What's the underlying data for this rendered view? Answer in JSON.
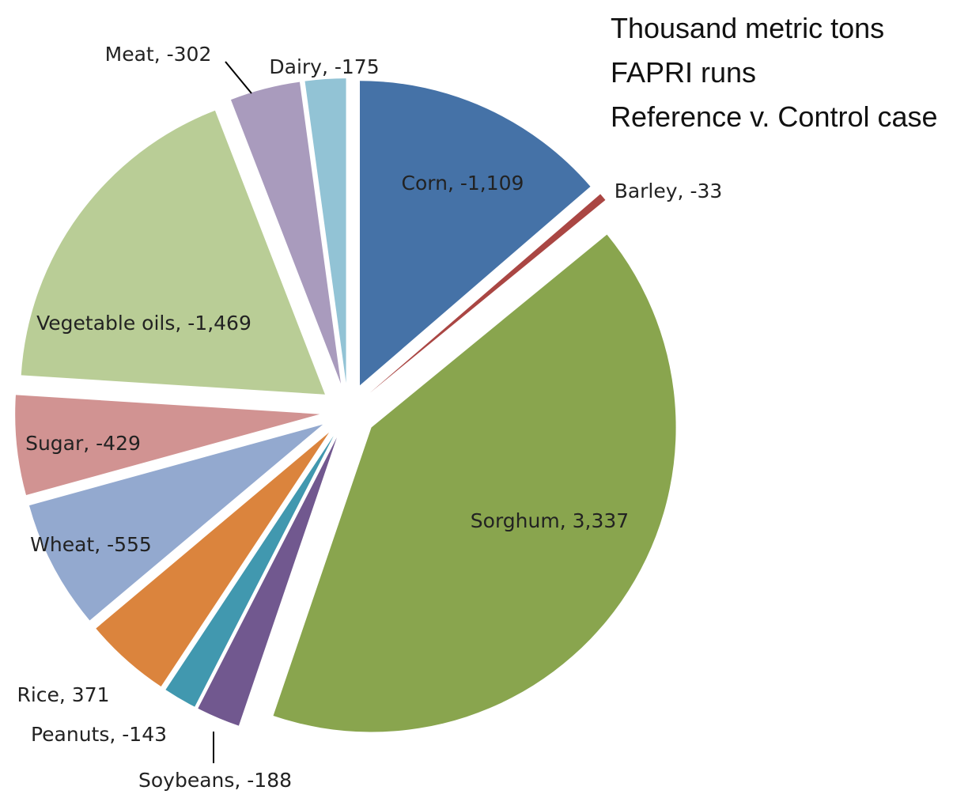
{
  "chart_data": {
    "type": "pie",
    "annotations": [
      "Thousand metric tons",
      "FAPRI runs",
      "Reference v. Control case"
    ],
    "values": [
      -1109,
      -33,
      3337,
      -188,
      -143,
      371,
      -555,
      -429,
      -1469,
      -302,
      -175
    ],
    "value_labels": [
      "Corn, -1,109",
      "Barley, -33",
      "Sorghum, 3,337",
      "Soybeans, -188",
      "Peanuts, -143",
      "Rice, 371",
      "Wheat, -555",
      "Sugar, -429",
      "Vegetable oils, -1,469",
      "Meat, -302",
      "Dairy, -175"
    ],
    "colors": [
      "#4572a7",
      "#aa4643",
      "#89a54e",
      "#71588f",
      "#4198af",
      "#db843d",
      "#93a9cf",
      "#d19392",
      "#b9cd96",
      "#a99bbd",
      "#92c3d5"
    ]
  }
}
